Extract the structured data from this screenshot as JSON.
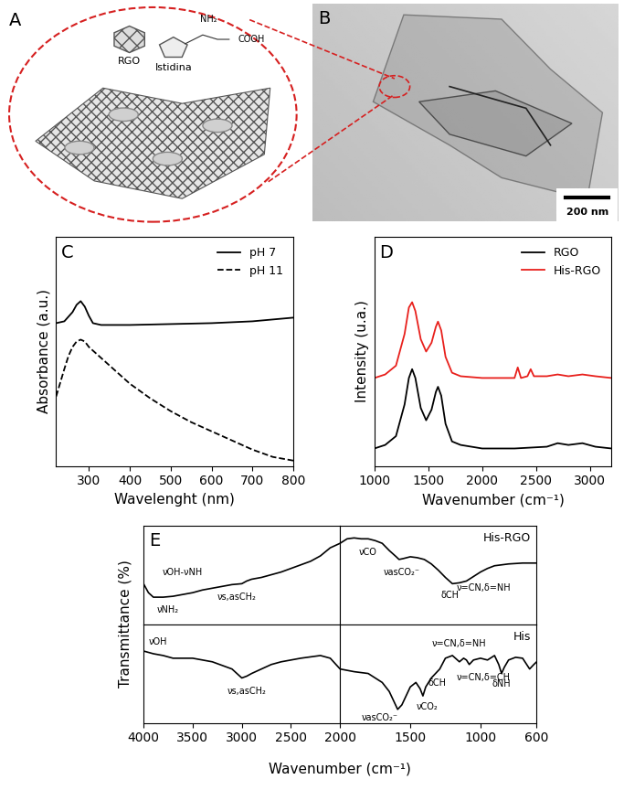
{
  "chart_data": [
    {
      "type": "line",
      "panel": "C",
      "xlabel": "Wavelenght (nm)",
      "ylabel": "Absorbance (a.u.)",
      "xlim": [
        220,
        800
      ],
      "xticks": [
        300,
        400,
        500,
        600,
        700,
        800
      ],
      "ylim": [
        0,
        1.25
      ],
      "yticks": [],
      "tick_labels": "x",
      "legend": "upper right",
      "series": [
        {
          "name": "pH 7",
          "color": "#000000",
          "line_style": "solid",
          "x": [
            220,
            240,
            260,
            270,
            280,
            290,
            300,
            310,
            330,
            350,
            400,
            500,
            600,
            700,
            800
          ],
          "values": [
            0.78,
            0.79,
            0.84,
            0.88,
            0.9,
            0.87,
            0.82,
            0.78,
            0.77,
            0.77,
            0.77,
            0.775,
            0.78,
            0.79,
            0.81
          ]
        },
        {
          "name": "pH 11",
          "color": "#000000",
          "line_style": "dashed",
          "x": [
            220,
            240,
            250,
            260,
            270,
            280,
            290,
            300,
            325,
            350,
            400,
            450,
            500,
            550,
            600,
            650,
            700,
            750,
            800
          ],
          "values": [
            0.38,
            0.53,
            0.6,
            0.65,
            0.68,
            0.69,
            0.68,
            0.65,
            0.6,
            0.55,
            0.45,
            0.37,
            0.3,
            0.24,
            0.19,
            0.14,
            0.09,
            0.05,
            0.03
          ]
        }
      ]
    },
    {
      "type": "line",
      "panel": "D",
      "xlabel": "Wavenumber (cm⁻¹)",
      "ylabel": "Intensity (u.a.)",
      "xlim": [
        1000,
        3200
      ],
      "xticks": [
        1000,
        1500,
        2000,
        2500,
        3000
      ],
      "ylim": [
        0,
        1.3
      ],
      "yticks": [],
      "tick_labels": "x",
      "legend": "upper right",
      "series": [
        {
          "name": "RGO",
          "color": "#000000",
          "line_style": "solid",
          "x": [
            1000,
            1100,
            1200,
            1280,
            1320,
            1350,
            1380,
            1430,
            1480,
            1530,
            1570,
            1590,
            1620,
            1660,
            1720,
            1800,
            2000,
            2300,
            2600,
            2700,
            2800,
            2930,
            3050,
            3200
          ],
          "values": [
            0.1,
            0.12,
            0.17,
            0.35,
            0.5,
            0.55,
            0.5,
            0.33,
            0.26,
            0.32,
            0.42,
            0.45,
            0.4,
            0.24,
            0.14,
            0.12,
            0.1,
            0.1,
            0.11,
            0.13,
            0.12,
            0.13,
            0.11,
            0.1
          ]
        },
        {
          "name": "His-RGO",
          "color": "#e8201c",
          "line_style": "solid",
          "x": [
            1000,
            1100,
            1200,
            1280,
            1320,
            1350,
            1380,
            1430,
            1480,
            1530,
            1570,
            1590,
            1620,
            1660,
            1720,
            1800,
            2000,
            2300,
            2330,
            2360,
            2420,
            2450,
            2480,
            2600,
            2700,
            2800,
            2930,
            3050,
            3200
          ],
          "values": [
            0.5,
            0.52,
            0.57,
            0.75,
            0.9,
            0.93,
            0.88,
            0.72,
            0.65,
            0.7,
            0.79,
            0.82,
            0.77,
            0.62,
            0.53,
            0.51,
            0.5,
            0.5,
            0.56,
            0.5,
            0.51,
            0.55,
            0.51,
            0.51,
            0.52,
            0.51,
            0.52,
            0.51,
            0.5
          ]
        }
      ]
    },
    {
      "type": "line",
      "panel": "E",
      "xlabel": "Wavenumber (cm⁻¹)",
      "ylabel": "Transmittance (%)",
      "ylim": [
        0,
        1.1
      ],
      "yticks": [],
      "tick_labels": "x",
      "segments": [
        {
          "xlim": [
            4000,
            2000
          ],
          "xticks": [
            4000,
            3500,
            3000,
            2500,
            2000
          ]
        },
        {
          "xlim": [
            2000,
            600
          ],
          "xticks": [
            1500,
            1000,
            600
          ]
        }
      ],
      "series": [
        {
          "name": "His-RGO",
          "color": "#000000",
          "x": [
            4000,
            3950,
            3900,
            3800,
            3700,
            3600,
            3500,
            3400,
            3300,
            3200,
            3100,
            3000,
            2950,
            2900,
            2800,
            2700,
            2600,
            2500,
            2400,
            2300,
            2200,
            2100,
            2000,
            1950,
            1900,
            1850,
            1800,
            1750,
            1700,
            1650,
            1600,
            1580,
            1550,
            1500,
            1450,
            1400,
            1350,
            1300,
            1250,
            1200,
            1150,
            1100,
            1050,
            1000,
            950,
            900,
            800,
            700,
            600
          ],
          "values": [
            0.45,
            0.35,
            0.3,
            0.3,
            0.31,
            0.33,
            0.35,
            0.38,
            0.4,
            0.42,
            0.44,
            0.45,
            0.48,
            0.5,
            0.52,
            0.55,
            0.58,
            0.62,
            0.66,
            0.7,
            0.76,
            0.85,
            0.9,
            0.95,
            0.96,
            0.95,
            0.95,
            0.93,
            0.9,
            0.82,
            0.75,
            0.72,
            0.73,
            0.75,
            0.74,
            0.72,
            0.67,
            0.6,
            0.52,
            0.45,
            0.46,
            0.48,
            0.53,
            0.58,
            0.62,
            0.65,
            0.67,
            0.68,
            0.68
          ],
          "annotations": [
            {
              "text": "νOH-νNH",
              "x": 3600,
              "y": 0.58
            },
            {
              "text": "νNH₂",
              "x": 3750,
              "y": 0.16
            },
            {
              "text": "νs,asCH₂",
              "x": 3050,
              "y": 0.3
            },
            {
              "text": "νCO",
              "x": 1800,
              "y": 0.8
            },
            {
              "text": "νasCO₂⁻",
              "x": 1560,
              "y": 0.58
            },
            {
              "text": "δCH",
              "x": 1220,
              "y": 0.32
            },
            {
              "text": "ν=CN,δ=NH",
              "x": 980,
              "y": 0.4
            }
          ]
        },
        {
          "name": "His",
          "color": "#000000",
          "x": [
            4000,
            3900,
            3800,
            3700,
            3600,
            3500,
            3400,
            3300,
            3200,
            3100,
            3050,
            3000,
            2950,
            2900,
            2800,
            2700,
            2600,
            2500,
            2400,
            2200,
            2100,
            2000,
            1900,
            1800,
            1700,
            1650,
            1620,
            1590,
            1560,
            1500,
            1460,
            1430,
            1410,
            1390,
            1350,
            1320,
            1290,
            1250,
            1200,
            1150,
            1120,
            1100,
            1080,
            1050,
            1000,
            950,
            900,
            870,
            850,
            830,
            800,
            750,
            700,
            650,
            620,
            600
          ],
          "values": [
            0.8,
            0.77,
            0.75,
            0.72,
            0.72,
            0.72,
            0.7,
            0.68,
            0.64,
            0.6,
            0.55,
            0.5,
            0.52,
            0.55,
            0.6,
            0.65,
            0.68,
            0.7,
            0.72,
            0.75,
            0.72,
            0.6,
            0.57,
            0.55,
            0.45,
            0.35,
            0.25,
            0.15,
            0.2,
            0.4,
            0.45,
            0.38,
            0.3,
            0.4,
            0.5,
            0.55,
            0.6,
            0.72,
            0.75,
            0.68,
            0.72,
            0.7,
            0.65,
            0.7,
            0.72,
            0.7,
            0.75,
            0.65,
            0.55,
            0.62,
            0.7,
            0.73,
            0.72,
            0.6,
            0.65,
            0.68
          ],
          "annotations": [
            {
              "text": "νOH",
              "x": 3850,
              "y": 0.9
            },
            {
              "text": "νs,asCH₂",
              "x": 2950,
              "y": 0.35
            },
            {
              "text": "νasCO₂⁻",
              "x": 1720,
              "y": 0.06
            },
            {
              "text": "νCO₂",
              "x": 1380,
              "y": 0.18
            },
            {
              "text": "δCH",
              "x": 1310,
              "y": 0.44
            },
            {
              "text": "ν=CN,δ=NH",
              "x": 1150,
              "y": 0.88
            },
            {
              "text": "ν=CN,δ=CH",
              "x": 980,
              "y": 0.5
            },
            {
              "text": "δNH",
              "x": 850,
              "y": 0.43
            }
          ]
        }
      ]
    }
  ],
  "diagram": {
    "panel": "A",
    "sheet_label": "RGO",
    "molecule_label": "Istidina",
    "groups": [
      "NH₂",
      "COOH"
    ]
  },
  "image": {
    "panel": "B",
    "scale_bar": "200 nm"
  }
}
